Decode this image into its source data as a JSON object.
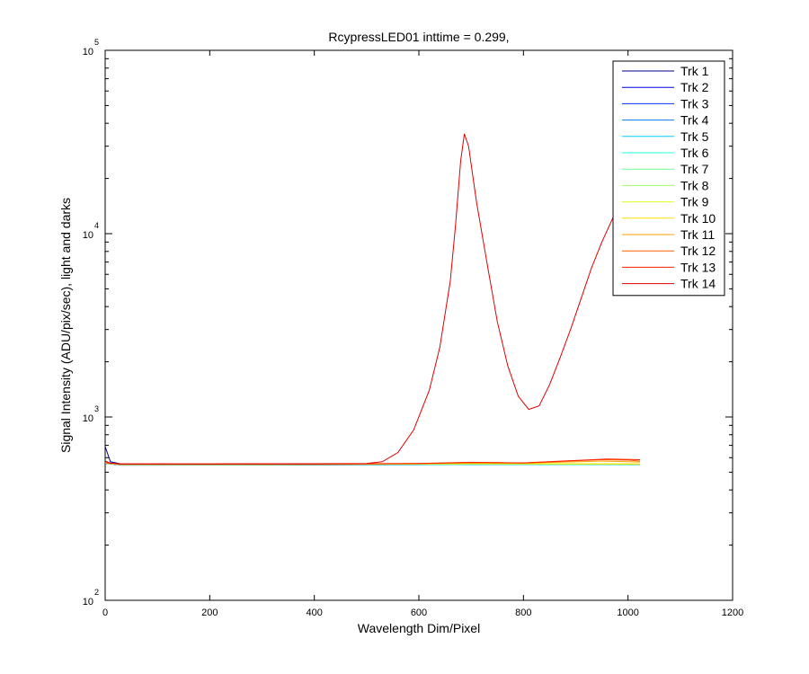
{
  "chart_data": {
    "type": "line",
    "title": "RcypressLED01 inttime = 0.299,",
    "xlabel": "Wavelength Dim/Pixel",
    "ylabel": "Signal Intensity (ADU/pix/sec), light and darks",
    "xlim": [
      0,
      1200
    ],
    "ylim": [
      100,
      100000
    ],
    "yscale": "log",
    "grid": false,
    "legend_placement": "top-right",
    "xticks": [
      0,
      200,
      400,
      600,
      800,
      1000,
      1200
    ],
    "xtick_labels": [
      "0",
      "200",
      "400",
      "600",
      "800",
      "1000",
      "1200"
    ],
    "yticks": [
      {
        "value": 100,
        "base": "10",
        "exp": "2"
      },
      {
        "value": 1000,
        "base": "10",
        "exp": "3"
      },
      {
        "value": 10000,
        "base": "10",
        "exp": "4"
      },
      {
        "value": 100000,
        "base": "10",
        "exp": "5"
      }
    ],
    "series": [
      {
        "name": "Trk 1",
        "color": "#00008f",
        "points": [
          [
            0,
            690
          ],
          [
            10,
            570
          ],
          [
            30,
            555
          ],
          [
            200,
            552
          ],
          [
            400,
            552
          ],
          [
            600,
            553
          ],
          [
            800,
            552
          ],
          [
            1023,
            552
          ]
        ]
      },
      {
        "name": "Trk 2",
        "color": "#0000df",
        "points": [
          [
            0,
            560
          ],
          [
            30,
            548
          ],
          [
            400,
            549
          ],
          [
            700,
            551
          ],
          [
            1023,
            550
          ]
        ]
      },
      {
        "name": "Trk 3",
        "color": "#0030ff",
        "points": [
          [
            0,
            558
          ],
          [
            30,
            546
          ],
          [
            400,
            547
          ],
          [
            700,
            550
          ],
          [
            1023,
            549
          ]
        ]
      },
      {
        "name": "Trk 4",
        "color": "#0080ff",
        "points": [
          [
            0,
            562
          ],
          [
            30,
            550
          ],
          [
            400,
            551
          ],
          [
            700,
            553
          ],
          [
            1023,
            552
          ]
        ]
      },
      {
        "name": "Trk 5",
        "color": "#00cfff",
        "points": [
          [
            0,
            560
          ],
          [
            30,
            549
          ],
          [
            400,
            550
          ],
          [
            700,
            552
          ],
          [
            1023,
            551
          ]
        ]
      },
      {
        "name": "Trk 6",
        "color": "#20ffdf",
        "points": [
          [
            0,
            559
          ],
          [
            30,
            548
          ],
          [
            400,
            549
          ],
          [
            700,
            551
          ],
          [
            1023,
            550
          ]
        ]
      },
      {
        "name": "Trk 7",
        "color": "#70ff8f",
        "points": [
          [
            0,
            561
          ],
          [
            30,
            550
          ],
          [
            400,
            551
          ],
          [
            700,
            554
          ],
          [
            1023,
            552
          ]
        ]
      },
      {
        "name": "Trk 8",
        "color": "#a0ff60",
        "points": [
          [
            0,
            560
          ],
          [
            30,
            549
          ],
          [
            400,
            550
          ],
          [
            700,
            555
          ],
          [
            1023,
            553
          ]
        ]
      },
      {
        "name": "Trk 9",
        "color": "#dfff20",
        "points": [
          [
            0,
            560
          ],
          [
            30,
            550
          ],
          [
            400,
            551
          ],
          [
            700,
            556
          ],
          [
            1023,
            554
          ]
        ]
      },
      {
        "name": "Trk 10",
        "color": "#ffdf00",
        "points": [
          [
            0,
            560
          ],
          [
            30,
            550
          ],
          [
            400,
            551
          ],
          [
            700,
            557
          ],
          [
            1023,
            555
          ]
        ]
      },
      {
        "name": "Trk 11",
        "color": "#ff9f00",
        "points": [
          [
            0,
            562
          ],
          [
            30,
            552
          ],
          [
            400,
            553
          ],
          [
            600,
            556
          ],
          [
            700,
            562
          ],
          [
            800,
            560
          ],
          [
            950,
            575
          ],
          [
            1023,
            568
          ]
        ]
      },
      {
        "name": "Trk 12",
        "color": "#ff6000",
        "points": [
          [
            0,
            563
          ],
          [
            30,
            553
          ],
          [
            400,
            554
          ],
          [
            600,
            558
          ],
          [
            700,
            566
          ],
          [
            800,
            562
          ],
          [
            950,
            585
          ],
          [
            1000,
            582
          ],
          [
            1023,
            575
          ]
        ]
      },
      {
        "name": "Trk 13",
        "color": "#ff2000",
        "points": [
          [
            0,
            564
          ],
          [
            30,
            554
          ],
          [
            400,
            555
          ],
          [
            600,
            558
          ],
          [
            700,
            565
          ],
          [
            800,
            562
          ],
          [
            960,
            590
          ],
          [
            1023,
            585
          ]
        ]
      },
      {
        "name": "Trk 14",
        "color": "#df0000",
        "points": [
          [
            0,
            575
          ],
          [
            10,
            560
          ],
          [
            30,
            555
          ],
          [
            200,
            555
          ],
          [
            400,
            556
          ],
          [
            500,
            558
          ],
          [
            530,
            570
          ],
          [
            560,
            640
          ],
          [
            590,
            850
          ],
          [
            620,
            1400
          ],
          [
            640,
            2400
          ],
          [
            660,
            5500
          ],
          [
            670,
            11000
          ],
          [
            680,
            25000
          ],
          [
            687,
            35000
          ],
          [
            695,
            30000
          ],
          [
            710,
            15000
          ],
          [
            730,
            7000
          ],
          [
            750,
            3300
          ],
          [
            770,
            1900
          ],
          [
            790,
            1300
          ],
          [
            810,
            1100
          ],
          [
            830,
            1150
          ],
          [
            850,
            1500
          ],
          [
            870,
            2100
          ],
          [
            890,
            3000
          ],
          [
            910,
            4400
          ],
          [
            930,
            6500
          ],
          [
            950,
            9000
          ],
          [
            970,
            12000
          ],
          [
            990,
            16000
          ]
        ]
      }
    ]
  }
}
